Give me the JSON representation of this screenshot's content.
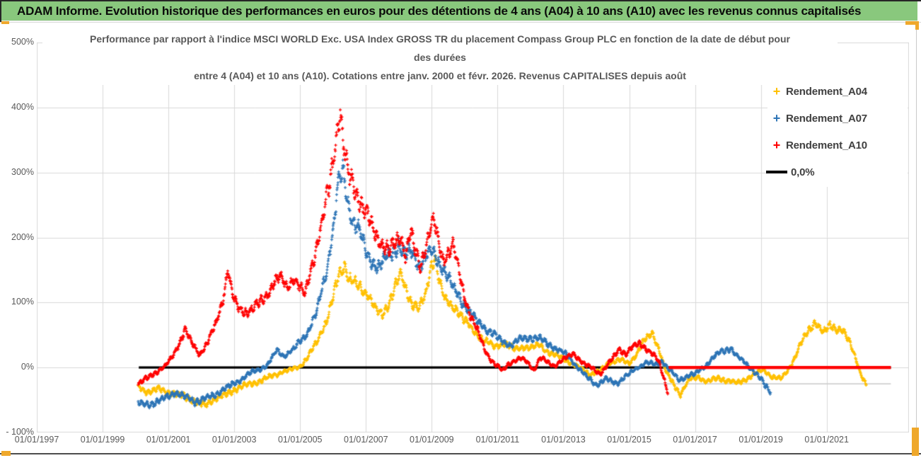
{
  "header": {
    "title": "ADAM Informe. Evolution historique des performances en euros pour des détentions de 4 ans (A04) à 10 ans (A10) avec les revenus connus capitalisés",
    "background_color": "#89C87D"
  },
  "chart_data": {
    "type": "scatter",
    "title": [
      "Performance par rapport à l'indice MSCI WORLD Exc. USA Index GROSS TR  du placement Compass Group PLC en fonction de la date de début pour",
      "des durées",
      "entre 4 (A04) et 10 ans (A10). Cotations entre janv. 2000 et févr. 2026. Revenus CAPITALISES depuis août"
    ],
    "x_axis": {
      "tick_labels": [
        "01/01/1997",
        "01/01/1999",
        "01/01/2001",
        "01/01/2003",
        "01/01/2005",
        "01/01/2007",
        "01/01/2009",
        "01/01/2011",
        "01/01/2013",
        "01/01/2015",
        "01/01/2017",
        "01/01/2019",
        "01/01/2021"
      ],
      "tick_years": [
        1997,
        1999,
        2001,
        2003,
        2005,
        2007,
        2009,
        2011,
        2013,
        2015,
        2017,
        2019,
        2021
      ],
      "min_year": 1997,
      "max_year": 2023.5
    },
    "y_axis": {
      "tick_labels": [
        "500%",
        "400%",
        "300%",
        "200%",
        "100%",
        "0%",
        "- 100%"
      ],
      "tick_values": [
        500,
        400,
        300,
        200,
        100,
        0,
        -100
      ],
      "min": -100,
      "max": 500,
      "unit": "%"
    },
    "grid": {
      "on": true,
      "color": "#D9D9D9"
    },
    "legend": {
      "position": "right",
      "entries": [
        {
          "label": "Rendement_A04",
          "color": "#FFC000",
          "marker": "plus"
        },
        {
          "label": "Rendement_A07",
          "color": "#2E75B6",
          "marker": "plus"
        },
        {
          "label": "Rendement_A10",
          "color": "#FF0000",
          "marker": "plus"
        },
        {
          "label": "0,0%",
          "color": "#000000",
          "marker": "line"
        }
      ]
    },
    "reference_lines": [
      {
        "label": "0,0%",
        "value": 0,
        "color": "#000000",
        "from_year": 2000.1,
        "to_year": 2022.95,
        "width": 3.2
      },
      {
        "label": "",
        "value": -25,
        "color": "#C9C9C9",
        "from_year": 2000.1,
        "to_year": 2022.95,
        "width": 1.5
      }
    ],
    "series": [
      {
        "name": "Rendement_A04",
        "color": "#FFC000",
        "marker": "plus",
        "points_year_pct": [
          [
            2000.08,
            -30
          ],
          [
            2000.4,
            -38
          ],
          [
            2000.7,
            -33
          ],
          [
            2001.0,
            -38
          ],
          [
            2001.3,
            -42
          ],
          [
            2001.6,
            -46
          ],
          [
            2001.9,
            -55
          ],
          [
            2002.1,
            -58
          ],
          [
            2002.4,
            -48
          ],
          [
            2002.7,
            -43
          ],
          [
            2003.0,
            -34
          ],
          [
            2003.3,
            -28
          ],
          [
            2003.6,
            -24
          ],
          [
            2003.9,
            -18
          ],
          [
            2004.2,
            -12
          ],
          [
            2004.5,
            -6
          ],
          [
            2004.8,
            -2
          ],
          [
            2005.0,
            2
          ],
          [
            2005.2,
            14
          ],
          [
            2005.5,
            38
          ],
          [
            2005.8,
            72
          ],
          [
            2006.0,
            108
          ],
          [
            2006.2,
            145
          ],
          [
            2006.35,
            158
          ],
          [
            2006.5,
            138
          ],
          [
            2006.7,
            127
          ],
          [
            2006.9,
            118
          ],
          [
            2007.1,
            112
          ],
          [
            2007.3,
            90
          ],
          [
            2007.5,
            79
          ],
          [
            2007.7,
            100
          ],
          [
            2007.9,
            128
          ],
          [
            2008.05,
            143
          ],
          [
            2008.2,
            120
          ],
          [
            2008.4,
            100
          ],
          [
            2008.6,
            92
          ],
          [
            2008.8,
            108
          ],
          [
            2009.0,
            160
          ],
          [
            2009.1,
            170
          ],
          [
            2009.25,
            130
          ],
          [
            2009.4,
            105
          ],
          [
            2009.6,
            95
          ],
          [
            2009.8,
            88
          ],
          [
            2010.0,
            72
          ],
          [
            2010.3,
            55
          ],
          [
            2010.6,
            42
          ],
          [
            2010.9,
            32
          ],
          [
            2011.2,
            38
          ],
          [
            2011.5,
            28
          ],
          [
            2011.8,
            32
          ],
          [
            2012.0,
            30
          ],
          [
            2012.3,
            34
          ],
          [
            2012.6,
            22
          ],
          [
            2012.9,
            16
          ],
          [
            2013.2,
            8
          ],
          [
            2013.5,
            0
          ],
          [
            2013.8,
            -10
          ],
          [
            2014.1,
            -6
          ],
          [
            2014.4,
            8
          ],
          [
            2014.7,
            12
          ],
          [
            2015.0,
            6
          ],
          [
            2015.2,
            20
          ],
          [
            2015.45,
            42
          ],
          [
            2015.7,
            52
          ],
          [
            2015.9,
            30
          ],
          [
            2016.1,
            -5
          ],
          [
            2016.3,
            -22
          ],
          [
            2016.55,
            -40
          ],
          [
            2016.8,
            -20
          ],
          [
            2017.1,
            -14
          ],
          [
            2017.4,
            -22
          ],
          [
            2017.7,
            -16
          ],
          [
            2018.0,
            -20
          ],
          [
            2018.3,
            -24
          ],
          [
            2018.6,
            -16
          ],
          [
            2018.9,
            -8
          ],
          [
            2019.1,
            -4
          ],
          [
            2019.35,
            -15
          ],
          [
            2019.6,
            -18
          ],
          [
            2019.8,
            -5
          ],
          [
            2020.0,
            12
          ],
          [
            2020.2,
            35
          ],
          [
            2020.45,
            58
          ],
          [
            2020.65,
            70
          ],
          [
            2020.9,
            52
          ],
          [
            2021.1,
            66
          ],
          [
            2021.3,
            60
          ],
          [
            2021.5,
            55
          ],
          [
            2021.7,
            38
          ],
          [
            2021.9,
            12
          ],
          [
            2022.05,
            -12
          ],
          [
            2022.2,
            -28
          ]
        ]
      },
      {
        "name": "Rendement_A07",
        "color": "#2E75B6",
        "marker": "plus",
        "points_year_pct": [
          [
            2000.08,
            -55
          ],
          [
            2000.4,
            -57
          ],
          [
            2000.7,
            -52
          ],
          [
            2001.0,
            -44
          ],
          [
            2001.2,
            -38
          ],
          [
            2001.5,
            -45
          ],
          [
            2001.8,
            -52
          ],
          [
            2002.0,
            -50
          ],
          [
            2002.3,
            -44
          ],
          [
            2002.6,
            -36
          ],
          [
            2002.9,
            -28
          ],
          [
            2003.2,
            -18
          ],
          [
            2003.5,
            -8
          ],
          [
            2003.8,
            -2
          ],
          [
            2004.0,
            4
          ],
          [
            2004.3,
            26
          ],
          [
            2004.5,
            18
          ],
          [
            2004.8,
            28
          ],
          [
            2005.0,
            40
          ],
          [
            2005.2,
            52
          ],
          [
            2005.5,
            85
          ],
          [
            2005.8,
            148
          ],
          [
            2006.0,
            215
          ],
          [
            2006.15,
            278
          ],
          [
            2006.3,
            300
          ],
          [
            2006.45,
            252
          ],
          [
            2006.6,
            228
          ],
          [
            2006.8,
            210
          ],
          [
            2007.0,
            175
          ],
          [
            2007.2,
            162
          ],
          [
            2007.4,
            155
          ],
          [
            2007.6,
            168
          ],
          [
            2007.8,
            175
          ],
          [
            2008.0,
            190
          ],
          [
            2008.2,
            172
          ],
          [
            2008.4,
            180
          ],
          [
            2008.6,
            155
          ],
          [
            2008.8,
            168
          ],
          [
            2009.0,
            182
          ],
          [
            2009.2,
            165
          ],
          [
            2009.4,
            148
          ],
          [
            2009.6,
            128
          ],
          [
            2009.8,
            112
          ],
          [
            2010.0,
            96
          ],
          [
            2010.3,
            75
          ],
          [
            2010.6,
            62
          ],
          [
            2010.9,
            50
          ],
          [
            2011.1,
            42
          ],
          [
            2011.4,
            34
          ],
          [
            2011.7,
            44
          ],
          [
            2012.0,
            46
          ],
          [
            2012.3,
            44
          ],
          [
            2012.5,
            38
          ],
          [
            2012.8,
            28
          ],
          [
            2013.1,
            20
          ],
          [
            2013.4,
            2
          ],
          [
            2013.7,
            -14
          ],
          [
            2014.0,
            -26
          ],
          [
            2014.3,
            -18
          ],
          [
            2014.6,
            -24
          ],
          [
            2014.9,
            -14
          ],
          [
            2015.2,
            -2
          ],
          [
            2015.5,
            8
          ],
          [
            2015.8,
            4
          ],
          [
            2016.0,
            10
          ],
          [
            2016.3,
            -8
          ],
          [
            2016.5,
            -20
          ],
          [
            2016.8,
            -12
          ],
          [
            2017.0,
            -10
          ],
          [
            2017.3,
            2
          ],
          [
            2017.6,
            18
          ],
          [
            2017.9,
            26
          ],
          [
            2018.1,
            30
          ],
          [
            2018.3,
            16
          ],
          [
            2018.5,
            8
          ],
          [
            2018.8,
            -6
          ],
          [
            2019.0,
            -18
          ],
          [
            2019.15,
            -30
          ],
          [
            2019.3,
            -38
          ]
        ]
      },
      {
        "name": "Rendement_A10",
        "color": "#FF0000",
        "marker": "plus",
        "flat_zero_from_year": 2016.2,
        "flat_zero_to_year": 2022.95,
        "points_year_pct": [
          [
            2000.08,
            -25
          ],
          [
            2000.3,
            -18
          ],
          [
            2000.6,
            -8
          ],
          [
            2000.9,
            2
          ],
          [
            2001.1,
            15
          ],
          [
            2001.35,
            40
          ],
          [
            2001.5,
            58
          ],
          [
            2001.7,
            38
          ],
          [
            2001.95,
            20
          ],
          [
            2002.2,
            40
          ],
          [
            2002.45,
            68
          ],
          [
            2002.65,
            105
          ],
          [
            2002.8,
            152
          ],
          [
            2002.95,
            110
          ],
          [
            2003.1,
            92
          ],
          [
            2003.4,
            86
          ],
          [
            2003.7,
            96
          ],
          [
            2004.0,
            112
          ],
          [
            2004.2,
            130
          ],
          [
            2004.4,
            138
          ],
          [
            2004.6,
            125
          ],
          [
            2004.8,
            138
          ],
          [
            2005.0,
            122
          ],
          [
            2005.15,
            112
          ],
          [
            2005.3,
            148
          ],
          [
            2005.5,
            185
          ],
          [
            2005.7,
            230
          ],
          [
            2005.9,
            285
          ],
          [
            2006.05,
            340
          ],
          [
            2006.15,
            372
          ],
          [
            2006.22,
            395
          ],
          [
            2006.3,
            345
          ],
          [
            2006.45,
            300
          ],
          [
            2006.6,
            285
          ],
          [
            2006.75,
            268
          ],
          [
            2006.9,
            245
          ],
          [
            2007.1,
            228
          ],
          [
            2007.3,
            205
          ],
          [
            2007.5,
            190
          ],
          [
            2007.7,
            178
          ],
          [
            2007.9,
            192
          ],
          [
            2008.05,
            205
          ],
          [
            2008.2,
            172
          ],
          [
            2008.35,
            208
          ],
          [
            2008.5,
            178
          ],
          [
            2008.65,
            155
          ],
          [
            2008.8,
            185
          ],
          [
            2008.95,
            215
          ],
          [
            2009.05,
            228
          ],
          [
            2009.2,
            192
          ],
          [
            2009.35,
            165
          ],
          [
            2009.5,
            178
          ],
          [
            2009.65,
            188
          ],
          [
            2009.8,
            152
          ],
          [
            2010.0,
            108
          ],
          [
            2010.2,
            78
          ],
          [
            2010.4,
            55
          ],
          [
            2010.6,
            28
          ],
          [
            2010.8,
            12
          ],
          [
            2011.0,
            2
          ],
          [
            2011.15,
            -6
          ],
          [
            2011.3,
            4
          ],
          [
            2011.5,
            10
          ],
          [
            2011.7,
            14
          ],
          [
            2011.9,
            8
          ],
          [
            2012.1,
            -4
          ],
          [
            2012.3,
            16
          ],
          [
            2012.5,
            8
          ],
          [
            2012.7,
            2
          ],
          [
            2012.9,
            10
          ],
          [
            2013.1,
            16
          ],
          [
            2013.3,
            20
          ],
          [
            2013.5,
            12
          ],
          [
            2013.7,
            4
          ],
          [
            2013.9,
            -2
          ],
          [
            2014.1,
            -10
          ],
          [
            2014.3,
            2
          ],
          [
            2014.5,
            14
          ],
          [
            2014.7,
            28
          ],
          [
            2014.9,
            22
          ],
          [
            2015.1,
            32
          ],
          [
            2015.3,
            36
          ],
          [
            2015.5,
            30
          ],
          [
            2015.7,
            22
          ],
          [
            2015.9,
            8
          ],
          [
            2016.0,
            -8
          ],
          [
            2016.1,
            -25
          ],
          [
            2016.17,
            -35
          ]
        ]
      }
    ]
  }
}
